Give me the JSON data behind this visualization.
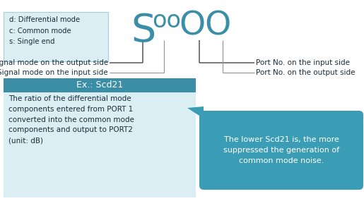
{
  "teal": "#3b8ea5",
  "teal_bubble": "#3b9db5",
  "light_blue_box": "#daeef3",
  "teal_header": "#3b8ea5",
  "label_box_text": "d: Differential mode\nc: Common mode\ns: Single end",
  "example_title": "Ex.: Scd21",
  "example_body": "The ratio of the differential mode\ncomponents entered from PORT 1\nconverted into the common mode\ncomponents and output to PORT2\n(unit: dB)",
  "bubble_text": "The lower Scd21 is, the more\nsuppressed the generation of\ncommon mode noise.",
  "left_label1": "Signal mode on the output side",
  "left_label2": "Signal mode on the input side",
  "right_label1": "Port No. on the input side",
  "right_label2": "Port No. on the output side",
  "text_color_dark": "#1a2e3b",
  "line_color_dark": "#555555",
  "line_color_light": "#999999"
}
